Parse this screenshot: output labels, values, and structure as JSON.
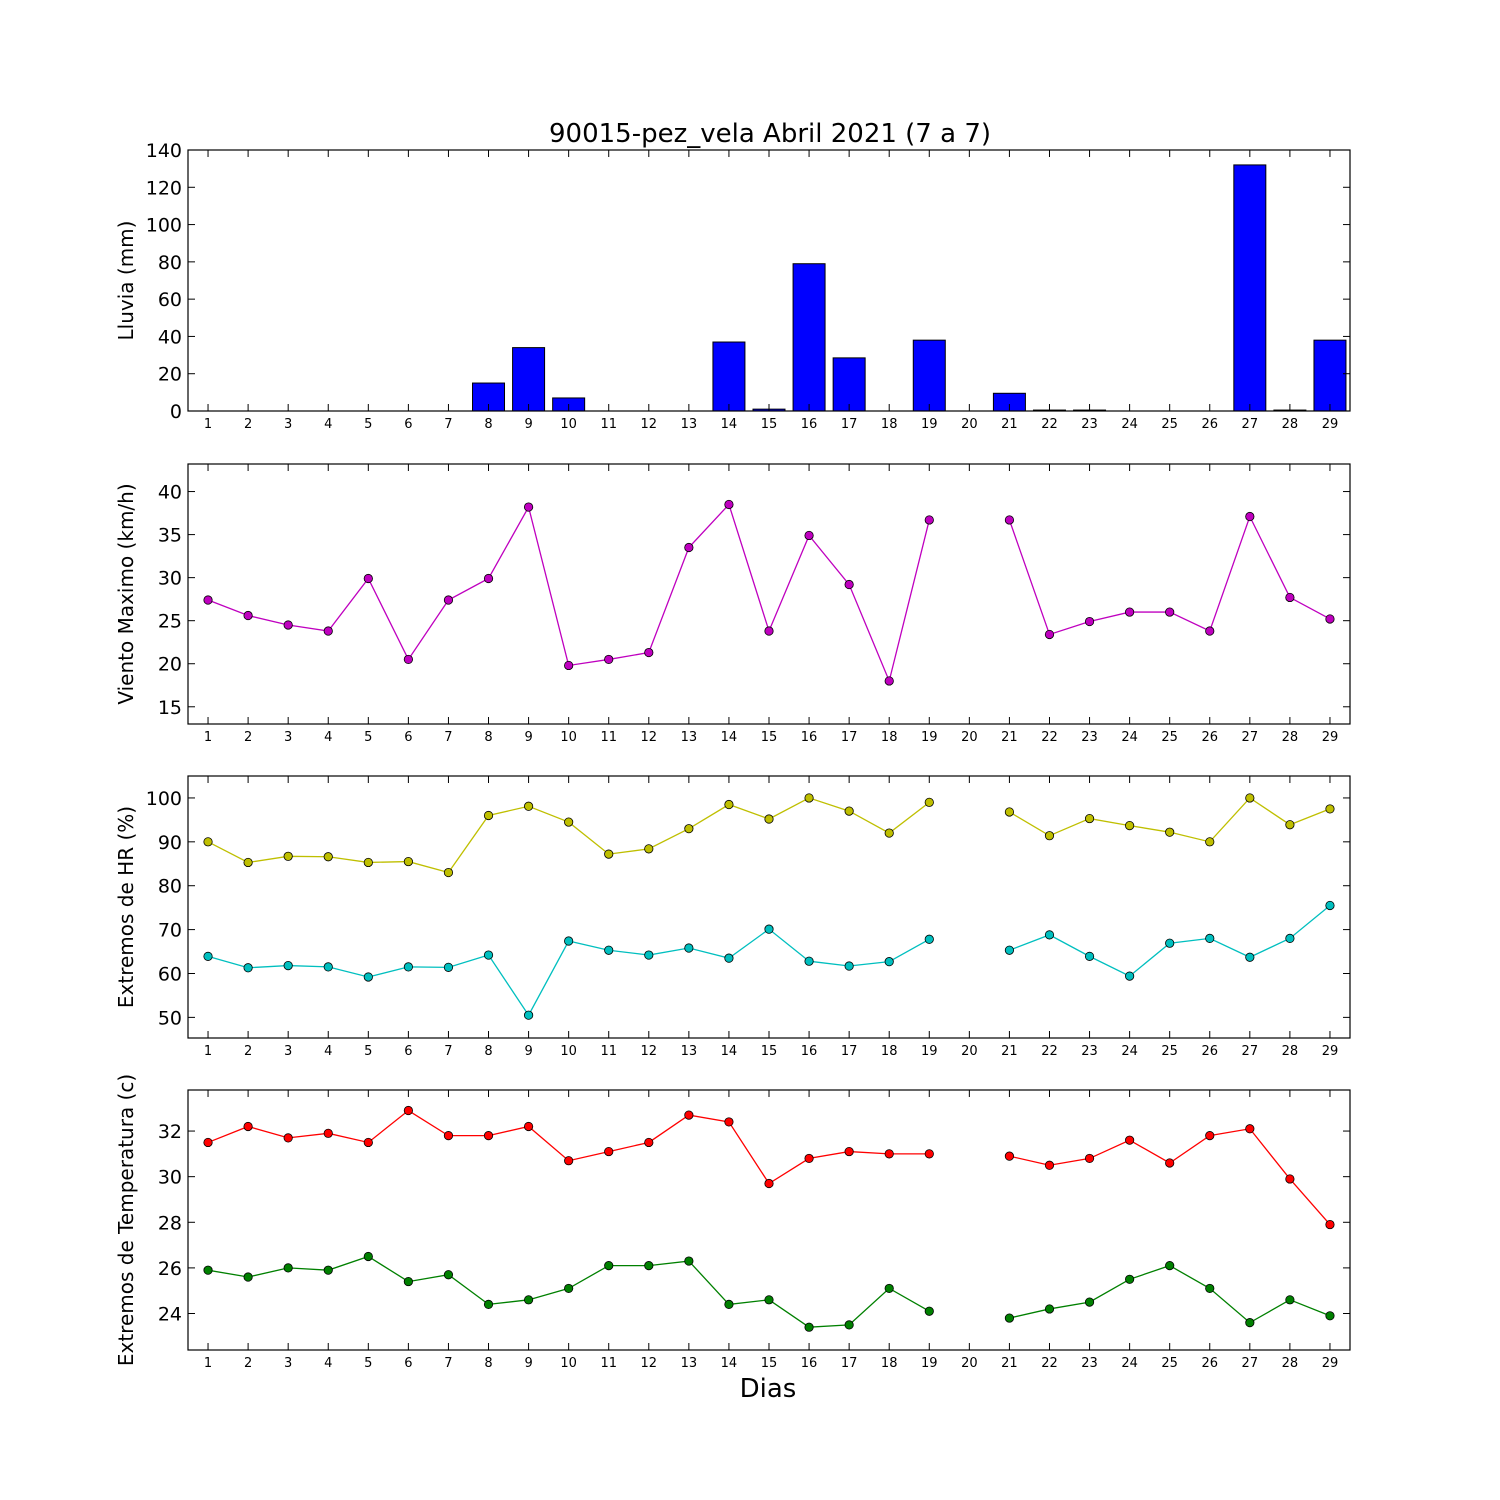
{
  "figure": {
    "title": "90015-pez_vela Abril 2021  (7 a 7)",
    "xlabel": "Dias"
  },
  "chart_data": [
    {
      "type": "bar",
      "ylabel": "Lluvia (mm)",
      "x": [
        1,
        2,
        3,
        4,
        5,
        6,
        7,
        8,
        9,
        10,
        11,
        12,
        13,
        14,
        15,
        16,
        17,
        18,
        19,
        20,
        21,
        22,
        23,
        24,
        25,
        26,
        27,
        28,
        29
      ],
      "xlim": [
        0.5,
        29.5
      ],
      "ylim": [
        0,
        140
      ],
      "yticks": [
        0,
        20,
        40,
        60,
        80,
        100,
        120,
        140
      ],
      "series": [
        {
          "values": [
            0,
            0,
            0,
            0,
            0,
            0,
            0,
            15,
            34,
            7,
            0,
            0,
            0,
            37,
            1,
            79,
            28.5,
            0,
            38,
            null,
            9.5,
            0.5,
            0.5,
            0,
            0,
            0,
            132,
            0.5,
            38
          ],
          "color": "#0000ff"
        }
      ]
    },
    {
      "type": "line",
      "ylabel": "Viento Maximo (km/h)",
      "x": [
        1,
        2,
        3,
        4,
        5,
        6,
        7,
        8,
        9,
        10,
        11,
        12,
        13,
        14,
        15,
        16,
        17,
        18,
        19,
        20,
        21,
        22,
        23,
        24,
        25,
        26,
        27,
        28,
        29
      ],
      "xlim": [
        0.5,
        29.5
      ],
      "ylim": [
        13,
        43.2
      ],
      "yticks": [
        15,
        20,
        25,
        30,
        35,
        40
      ],
      "series": [
        {
          "values": [
            27.4,
            25.6,
            24.5,
            23.8,
            29.9,
            20.5,
            27.4,
            29.9,
            38.2,
            19.8,
            20.5,
            21.3,
            33.5,
            38.5,
            23.8,
            34.9,
            29.2,
            18.0,
            36.7,
            null,
            36.7,
            23.4,
            24.9,
            26.0,
            26.0,
            23.8,
            37.1,
            27.7,
            25.2
          ],
          "color": "#bf00bf"
        }
      ]
    },
    {
      "type": "line",
      "ylabel": "Extremos de HR (%)",
      "x": [
        1,
        2,
        3,
        4,
        5,
        6,
        7,
        8,
        9,
        10,
        11,
        12,
        13,
        14,
        15,
        16,
        17,
        18,
        19,
        20,
        21,
        22,
        23,
        24,
        25,
        26,
        27,
        28,
        29
      ],
      "xlim": [
        0.5,
        29.5
      ],
      "ylim": [
        45.3,
        105
      ],
      "yticks": [
        50,
        60,
        70,
        80,
        90,
        100
      ],
      "series": [
        {
          "values": [
            90,
            85.3,
            86.7,
            86.6,
            85.3,
            85.5,
            83.0,
            96.0,
            98.1,
            94.5,
            87.2,
            88.4,
            93.0,
            98.5,
            95.2,
            100,
            97.0,
            92.0,
            99.0,
            null,
            96.8,
            91.4,
            95.3,
            93.7,
            92.2,
            90.0,
            100,
            93.9,
            97.5
          ],
          "color": "#bfbf00"
        },
        {
          "values": [
            63.9,
            61.3,
            61.8,
            61.5,
            59.2,
            61.5,
            61.4,
            64.2,
            50.5,
            67.4,
            65.3,
            64.2,
            65.8,
            63.5,
            70.1,
            62.8,
            61.7,
            62.7,
            67.8,
            null,
            65.3,
            68.8,
            63.9,
            59.4,
            66.9,
            68.0,
            63.7,
            68.0,
            75.5
          ],
          "color": "#00bfbf"
        }
      ]
    },
    {
      "type": "line",
      "ylabel": "Extremos de Temperatura (c)",
      "x": [
        1,
        2,
        3,
        4,
        5,
        6,
        7,
        8,
        9,
        10,
        11,
        12,
        13,
        14,
        15,
        16,
        17,
        18,
        19,
        20,
        21,
        22,
        23,
        24,
        25,
        26,
        27,
        28,
        29
      ],
      "xlim": [
        0.5,
        29.5
      ],
      "ylim": [
        22.4,
        33.8
      ],
      "yticks": [
        24,
        26,
        28,
        30,
        32
      ],
      "series": [
        {
          "values": [
            31.5,
            32.2,
            31.7,
            31.9,
            31.5,
            32.9,
            31.8,
            31.8,
            32.2,
            30.7,
            31.1,
            31.5,
            32.7,
            32.4,
            29.7,
            30.8,
            31.1,
            31.0,
            31.0,
            null,
            30.9,
            30.5,
            30.8,
            31.6,
            30.6,
            31.8,
            32.1,
            29.9,
            27.9
          ],
          "color": "#ff0000"
        },
        {
          "values": [
            25.9,
            25.6,
            26.0,
            25.9,
            26.5,
            25.4,
            25.7,
            24.4,
            24.6,
            25.1,
            26.1,
            26.1,
            26.3,
            24.4,
            24.6,
            23.4,
            23.5,
            25.1,
            24.1,
            null,
            23.8,
            24.2,
            24.5,
            25.5,
            26.1,
            25.1,
            23.6,
            24.6,
            23.9
          ],
          "color": "#008000"
        }
      ]
    }
  ]
}
